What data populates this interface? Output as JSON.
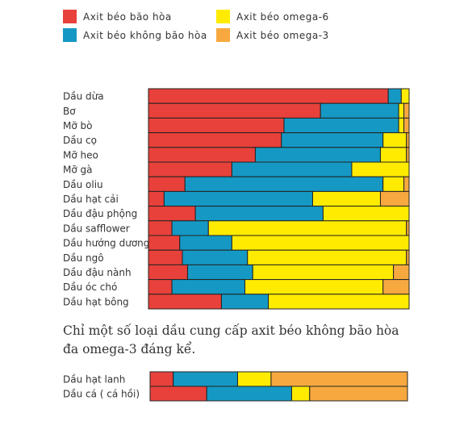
{
  "colors": {
    "saturated": "#e8413b",
    "unsaturated": "#1599c4",
    "omega6": "#ffeb00",
    "omega3": "#f7a940"
  },
  "legend": [
    {
      "key": "saturated",
      "label": "Axit béo bão hòa"
    },
    {
      "key": "unsaturated",
      "label": "Axit béo không bão hòa"
    },
    {
      "key": "omega6",
      "label": "Axit béo omega-6"
    },
    {
      "key": "omega3",
      "label": "Axit béo omega-3"
    }
  ],
  "caption": "Chỉ một số loại dầu cung cấp axit béo không bão hòa đa omega-3 đáng kể.",
  "chart_data": [
    {
      "type": "bar",
      "orientation": "horizontal",
      "stacked": true,
      "normalized_to": 100,
      "categories": [
        "Dầu dừa",
        "Bơ",
        "Mỡ bò",
        "Dầu cọ",
        "Mỡ heo",
        "Mỡ gà",
        "Dầu oliu",
        "Dầu hạt cải",
        "Dầu đậu phộng",
        "Dầu safflower",
        "Dầu hướng dương",
        "Dầu ngô",
        "Dầu đậu nành",
        "Dầu óc chó",
        "Dầu hạt bông"
      ],
      "series": [
        {
          "name": "Axit béo bão hòa",
          "key": "saturated",
          "values": [
            92,
            66,
            52,
            51,
            41,
            32,
            14,
            6,
            18,
            9,
            12,
            13,
            15,
            9,
            28
          ]
        },
        {
          "name": "Axit béo không bão hòa",
          "key": "unsaturated",
          "values": [
            5,
            30,
            44,
            39,
            48,
            46,
            76,
            57,
            49,
            14,
            20,
            25,
            25,
            28,
            18
          ]
        },
        {
          "name": "Axit béo omega-6",
          "key": "omega6",
          "values": [
            3,
            2,
            2,
            9,
            10,
            22,
            8,
            26,
            33,
            76,
            68,
            61,
            54,
            53,
            54
          ]
        },
        {
          "name": "Axit béo omega-3",
          "key": "omega3",
          "values": [
            0,
            2,
            2,
            1,
            1,
            0,
            2,
            11,
            0,
            1,
            0,
            1,
            6,
            10,
            0
          ]
        }
      ]
    },
    {
      "type": "bar",
      "orientation": "horizontal",
      "stacked": true,
      "normalized_to": 100,
      "categories": [
        "Dầu hạt lanh",
        "Dầu cá ( cá hồi)"
      ],
      "series": [
        {
          "name": "Axit béo bão hòa",
          "key": "saturated",
          "values": [
            9,
            22
          ]
        },
        {
          "name": "Axit béo không bão hòa",
          "key": "unsaturated",
          "values": [
            25,
            33
          ]
        },
        {
          "name": "Axit béo omega-6",
          "key": "omega6",
          "values": [
            13,
            7
          ]
        },
        {
          "name": "Axit béo omega-3",
          "key": "omega3",
          "values": [
            53,
            38
          ]
        }
      ]
    }
  ]
}
